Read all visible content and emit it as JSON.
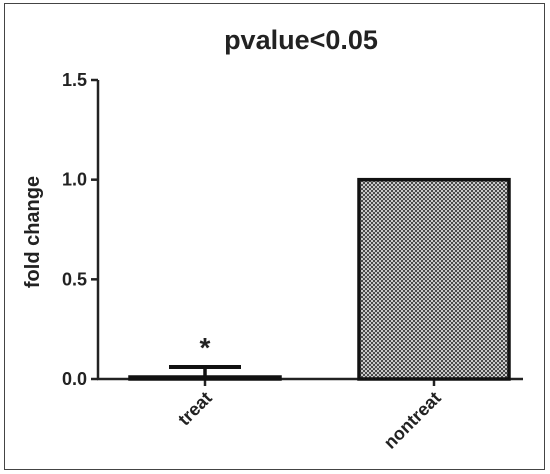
{
  "chart_data": {
    "type": "bar",
    "title": "pvalue<0.05",
    "xlabel": "",
    "ylabel": "fold change",
    "ylim": [
      0,
      1.5
    ],
    "yticks": [
      "0.0",
      "0.5",
      "1.0",
      "1.5"
    ],
    "categories": [
      "treat",
      "nontreat"
    ],
    "values": [
      0.01,
      1.0
    ],
    "error": [
      0.05,
      0
    ],
    "annotations": [
      {
        "category": "treat",
        "text": "*"
      }
    ],
    "fill_pattern": "checkered",
    "grid": false,
    "legend": "none"
  }
}
